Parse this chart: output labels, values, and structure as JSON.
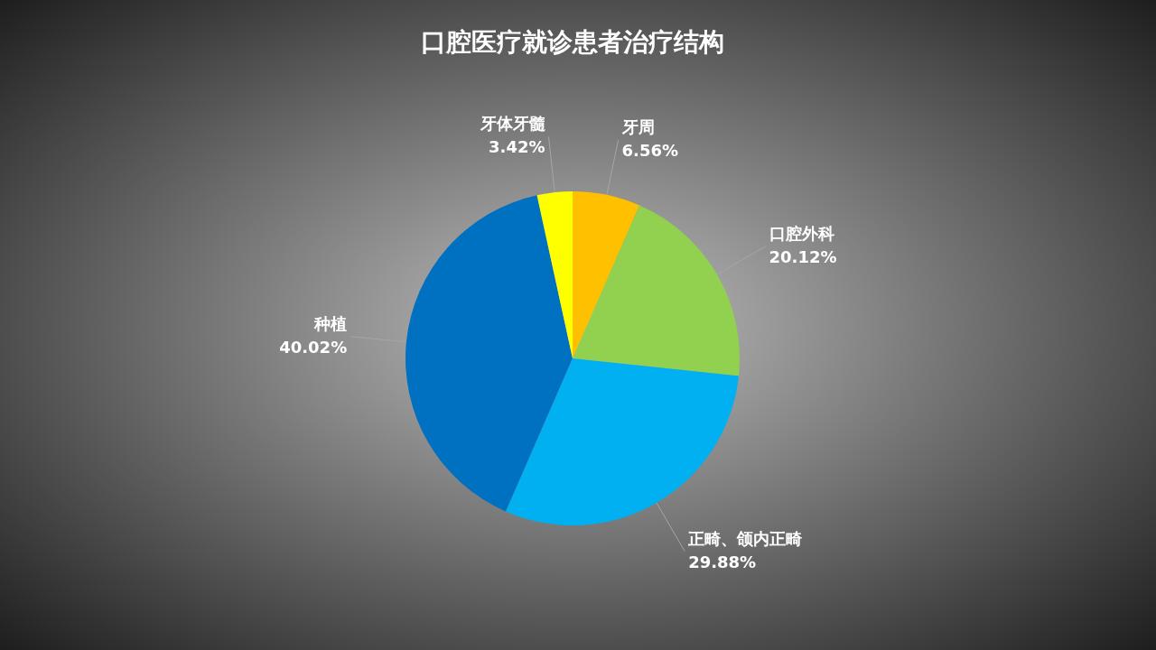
{
  "chart_data": {
    "type": "pie",
    "title": "口腔医疗就诊患者治疗结构",
    "categories": [
      "牙周",
      "口腔外科",
      "正畸、颌内正畸",
      "种植",
      "牙体牙髓"
    ],
    "values": [
      6.56,
      20.12,
      29.88,
      40.02,
      3.42
    ],
    "value_labels": [
      "6.56%",
      "20.12%",
      "29.88%",
      "40.02%",
      "3.42%"
    ],
    "colors": [
      "#ffc000",
      "#92d050",
      "#00b0f0",
      "#0070c0",
      "#ffff00"
    ]
  }
}
